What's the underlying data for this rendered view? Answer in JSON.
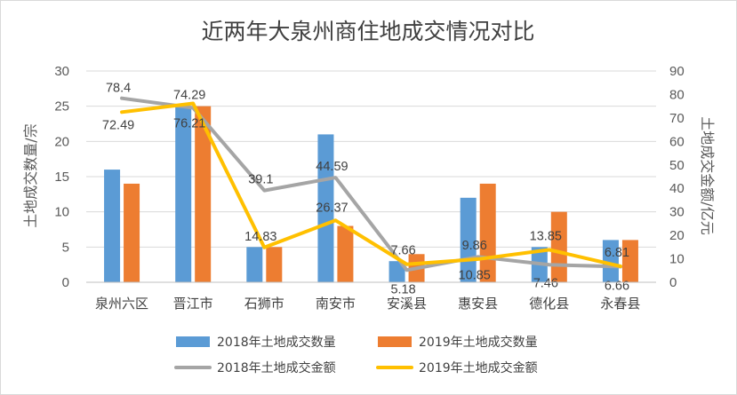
{
  "chart_data": {
    "type": "bar",
    "title": "近两年大泉州商住地成交情况对比",
    "categories": [
      "泉州六区",
      "晋江市",
      "石狮市",
      "南安市",
      "安溪县",
      "惠安县",
      "德化县",
      "永春县"
    ],
    "y_left": {
      "label": "土地成交数量/宗",
      "ylim": [
        0,
        30
      ],
      "ticks": [
        0,
        5,
        10,
        15,
        20,
        25,
        30
      ]
    },
    "y_right": {
      "label": "土地成交金额/亿元",
      "ylim": [
        0,
        90
      ],
      "ticks": [
        0,
        10,
        20,
        30,
        40,
        50,
        60,
        70,
        80,
        90
      ]
    },
    "grid": true,
    "legend_position": "bottom",
    "bar_series": [
      {
        "name": "2018年土地成交数量",
        "color": "#5b9bd5",
        "axis": "left",
        "values": [
          16,
          25,
          5,
          21,
          3,
          12,
          5,
          6
        ]
      },
      {
        "name": "2019年土地成交数量",
        "color": "#ed7d31",
        "axis": "left",
        "values": [
          14,
          25,
          5,
          8,
          4,
          14,
          10,
          6
        ]
      }
    ],
    "line_series": [
      {
        "name": "2018年土地成交金额",
        "color": "#a5a5a5",
        "axis": "right",
        "values": [
          78.4,
          74.29,
          39.1,
          44.59,
          5.18,
          10.85,
          7.46,
          6.66
        ]
      },
      {
        "name": "2019年土地成交金额",
        "color": "#ffc000",
        "axis": "right",
        "values": [
          72.49,
          76.21,
          14.83,
          26.37,
          7.66,
          9.86,
          13.85,
          6.81
        ]
      }
    ]
  }
}
